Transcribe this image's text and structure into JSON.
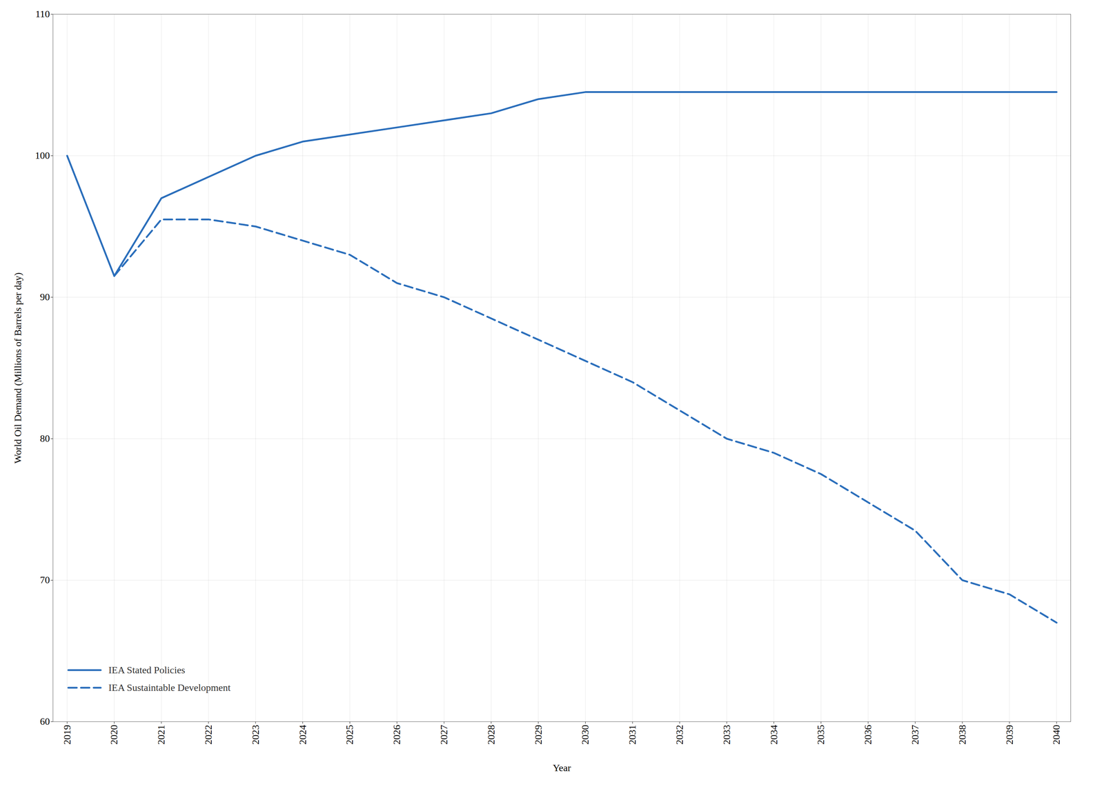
{
  "chart_data": {
    "type": "line",
    "x": [
      2019,
      2020,
      2021,
      2022,
      2023,
      2024,
      2025,
      2026,
      2027,
      2028,
      2029,
      2030,
      2031,
      2032,
      2033,
      2034,
      2035,
      2036,
      2037,
      2038,
      2039,
      2040
    ],
    "series": [
      {
        "name": "IEA Stated Policies",
        "color": "#2a6ebb",
        "line_style": "solid",
        "values": [
          100,
          91.5,
          97,
          98.5,
          100,
          101,
          101.5,
          102,
          102.5,
          103,
          104,
          104.5,
          104.5,
          104.5,
          104.5,
          104.5,
          104.5,
          104.5,
          104.5,
          104.5,
          104.5,
          104.5
        ]
      },
      {
        "name": "IEA Sustaintable Development",
        "color": "#2a6ebb",
        "line_style": "dashed",
        "values": [
          null,
          91.5,
          95.5,
          95.5,
          95,
          94,
          93,
          91,
          90,
          88.5,
          87,
          85.5,
          84,
          82,
          80,
          79,
          77.5,
          75.5,
          73.5,
          70,
          69,
          67
        ]
      }
    ],
    "xlabel": "Year",
    "ylabel": "World Oil Demand (Millions of Barrels per day)",
    "xlim": [
      2018.7,
      2040.3
    ],
    "xticks": [
      2019,
      2020,
      2021,
      2022,
      2023,
      2024,
      2025,
      2026,
      2027,
      2028,
      2029,
      2030,
      2031,
      2032,
      2033,
      2034,
      2035,
      2036,
      2037,
      2038,
      2039,
      2040
    ],
    "ylim": [
      60,
      110
    ],
    "yticks": [
      60,
      70,
      80,
      90,
      100,
      110
    ],
    "grid": true,
    "legend": "lower left"
  }
}
